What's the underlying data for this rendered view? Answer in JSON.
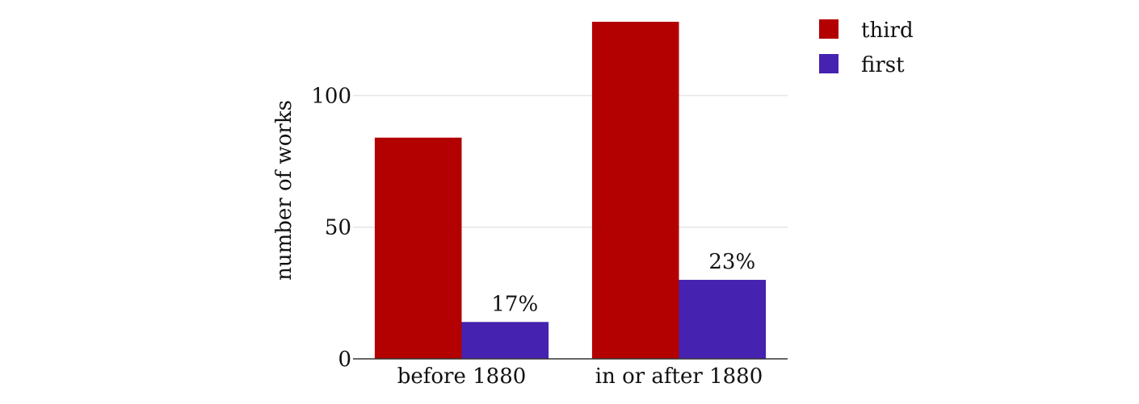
{
  "chart_data": {
    "type": "bar",
    "categories": [
      "before 1880",
      "in or after 1880"
    ],
    "series": [
      {
        "name": "third",
        "values": [
          84,
          128
        ],
        "color": "#b30000"
      },
      {
        "name": "first",
        "values": [
          14,
          30
        ],
        "color": "#4522b0",
        "labels": [
          "17%",
          "23%"
        ]
      }
    ],
    "xlabel": "",
    "ylabel": "number of works",
    "ylim": [
      0,
      128
    ],
    "yticks": [
      0,
      50,
      100
    ],
    "grid": true,
    "legend": "top-right"
  }
}
